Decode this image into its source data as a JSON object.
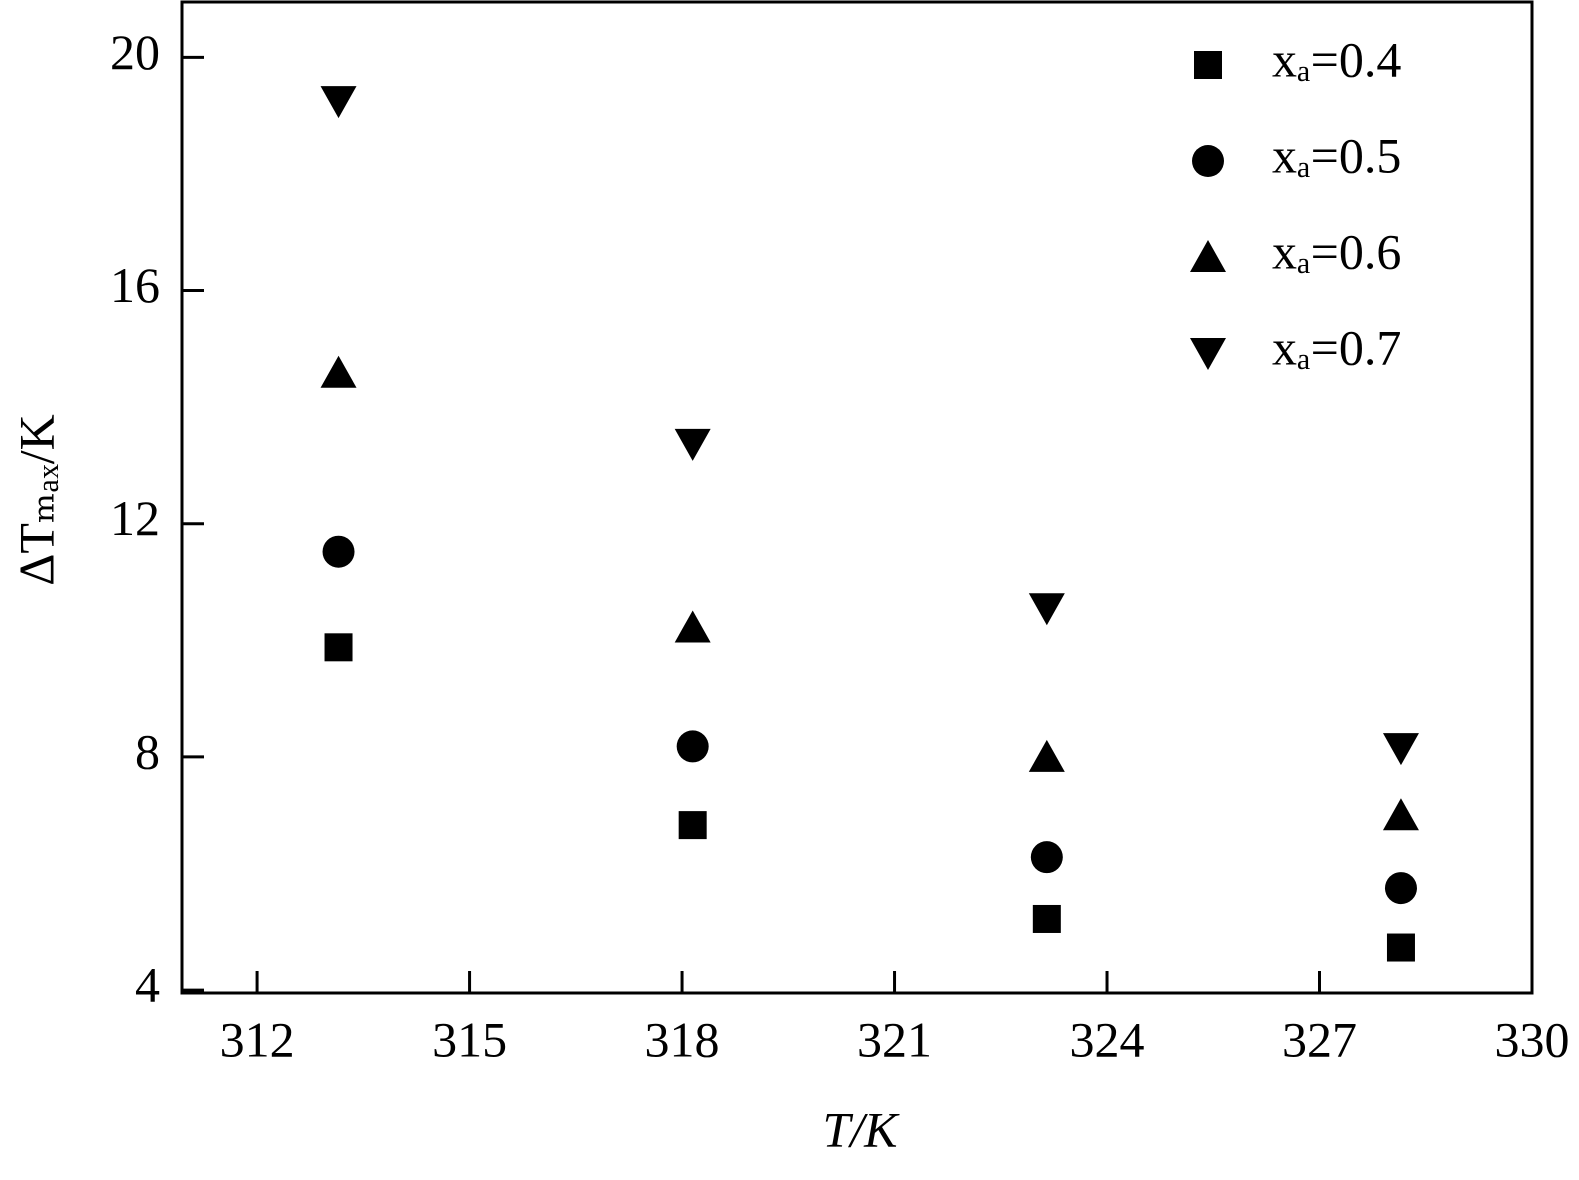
{
  "chart_data": {
    "type": "scatter",
    "x_label": "T/K",
    "y_label": "ΔTₘₐₓ/K",
    "x": [
      313.15,
      318.15,
      323.15,
      328.15
    ],
    "series": [
      {
        "name": "xₐ=0.4",
        "color": "#000000",
        "marker": "square",
        "values": [
          9.88,
          6.83,
          5.22,
          4.73
        ]
      },
      {
        "name": "xₐ=0.5",
        "color": "#000000",
        "marker": "circle",
        "values": [
          11.52,
          8.18,
          6.28,
          5.75
        ]
      },
      {
        "name": "xₐ=0.6",
        "color": "#000000",
        "marker": "triangle-up",
        "values": [
          14.59,
          10.22,
          8.0,
          7.0
        ]
      },
      {
        "name": "xₐ=0.7",
        "color": "#000000",
        "marker": "triangle-down",
        "values": [
          19.25,
          13.37,
          10.55,
          8.15
        ]
      }
    ],
    "xlim": [
      310.94,
      330
    ],
    "ylim": [
      3.95,
      20.95
    ],
    "xticks": [
      312,
      315,
      318,
      321,
      324,
      327,
      330
    ],
    "yticks": [
      4,
      8,
      12,
      16,
      20
    ],
    "legend": "upper right"
  }
}
